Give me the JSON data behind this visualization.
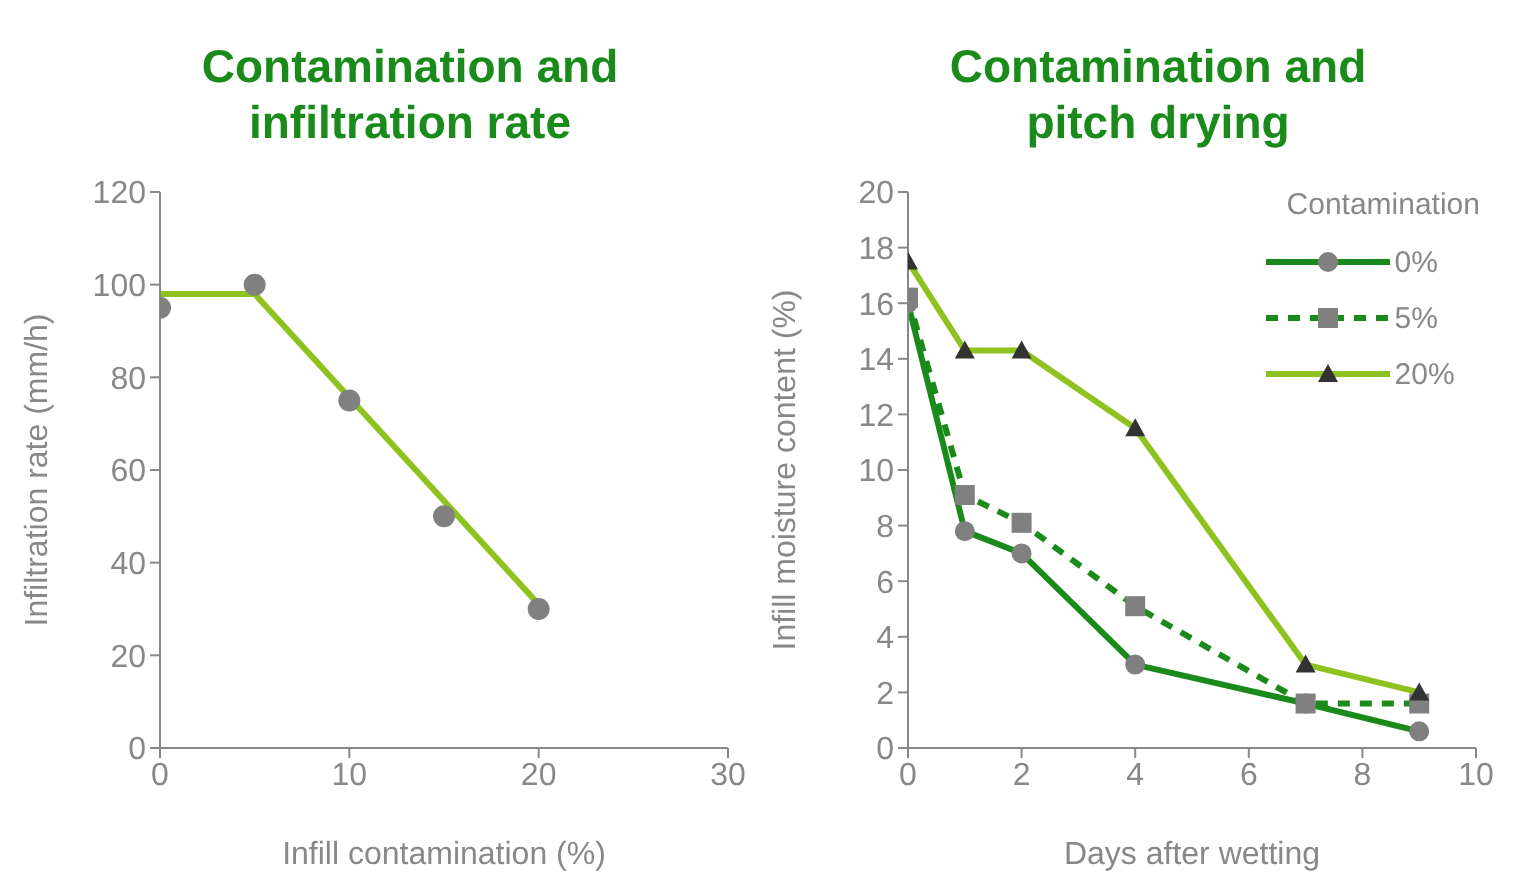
{
  "chart_data": [
    {
      "type": "scatter",
      "title": "Contamination and infiltration rate",
      "xlabel": "Infill contamination (%)",
      "ylabel": "Infiltration rate (mm/h)",
      "xlim": [
        0,
        30
      ],
      "xticks": [
        0,
        10,
        20,
        30
      ],
      "ylim": [
        0,
        120
      ],
      "yticks": [
        0,
        20,
        40,
        60,
        80,
        100,
        120
      ],
      "grid": false,
      "legend": false,
      "series": [
        {
          "color": "#808080",
          "marker": "circle",
          "x": [
            0,
            5,
            10,
            15,
            20
          ],
          "values": [
            95,
            100,
            75,
            50,
            30
          ]
        },
        {
          "type": "line",
          "color": "#8dc21f",
          "marker": "none",
          "x": [
            0,
            5,
            20
          ],
          "values": [
            98,
            98,
            31
          ]
        }
      ]
    },
    {
      "type": "line",
      "title": "Contamination and pitch drying",
      "xlabel": "Days after wetting",
      "ylabel": "Infill moisture content (%)",
      "legend_title": "Contamination",
      "xlim": [
        0,
        10
      ],
      "xticks": [
        0,
        2,
        4,
        6,
        8,
        10
      ],
      "ylim": [
        0,
        20
      ],
      "yticks": [
        0,
        2,
        4,
        6,
        8,
        10,
        12,
        14,
        16,
        18,
        20
      ],
      "grid": false,
      "legend": "top right",
      "x": [
        0,
        1,
        2,
        4,
        7,
        9
      ],
      "series": [
        {
          "name": "0%",
          "color": "#1a8a1a",
          "marker": "circle",
          "line_style": "solid",
          "values": [
            16,
            7.8,
            7,
            3,
            1.6,
            0.6
          ]
        },
        {
          "name": "5%",
          "color": "#1a8a1a",
          "marker": "square",
          "line_style": "dashed",
          "values": [
            16.2,
            9.1,
            8.1,
            5.1,
            1.6,
            1.6
          ]
        },
        {
          "name": "20%",
          "color": "#8dc21f",
          "marker": "triangle",
          "line_style": "solid",
          "values": [
            17.5,
            14.3,
            14.3,
            11.5,
            3,
            2
          ]
        }
      ]
    }
  ]
}
